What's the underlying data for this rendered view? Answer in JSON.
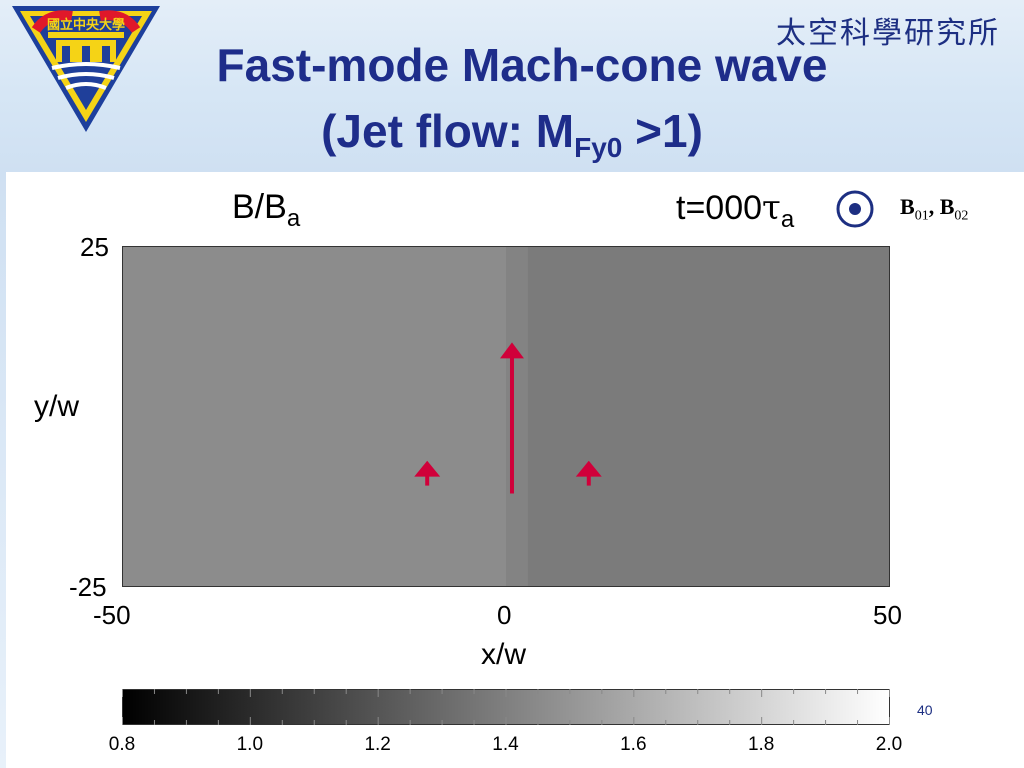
{
  "header": {
    "institute": "太空科學研究所",
    "title_line1": "Fast-mode Mach-cone wave",
    "title_line2_prefix": "(Jet flow: M",
    "title_line2_sub": "Fy0",
    "title_line2_suffix": " >1)"
  },
  "logo": {
    "text": "國立中央大學"
  },
  "panel": {
    "quantity": "B/B",
    "quantity_sub": "a",
    "time_prefix": "t=000",
    "time_symbol": "τ",
    "time_sub": "a"
  },
  "axes": {
    "y_label": "y/w",
    "x_label": "x/w",
    "y_ticks": [
      "25",
      "-25"
    ],
    "x_ticks": [
      "-50",
      "0",
      "50"
    ]
  },
  "field_legend": {
    "symbol": "out-of-page-icon",
    "b1": "B",
    "b1_sub": "01",
    "sep": ",",
    "b2": "B",
    "b2_sub": "02"
  },
  "colorbar": {
    "ticks": [
      "0.8",
      "1.0",
      "1.2",
      "1.4",
      "1.6",
      "1.8",
      "2.0"
    ],
    "min": 0.8,
    "max": 2.0
  },
  "page_number": "40",
  "colors": {
    "title": "#1e2d8a",
    "arrow": "#d0003a",
    "left_region": "#8c8c8c",
    "right_region": "#7b7b7b",
    "jet_strip": "#838383"
  }
}
